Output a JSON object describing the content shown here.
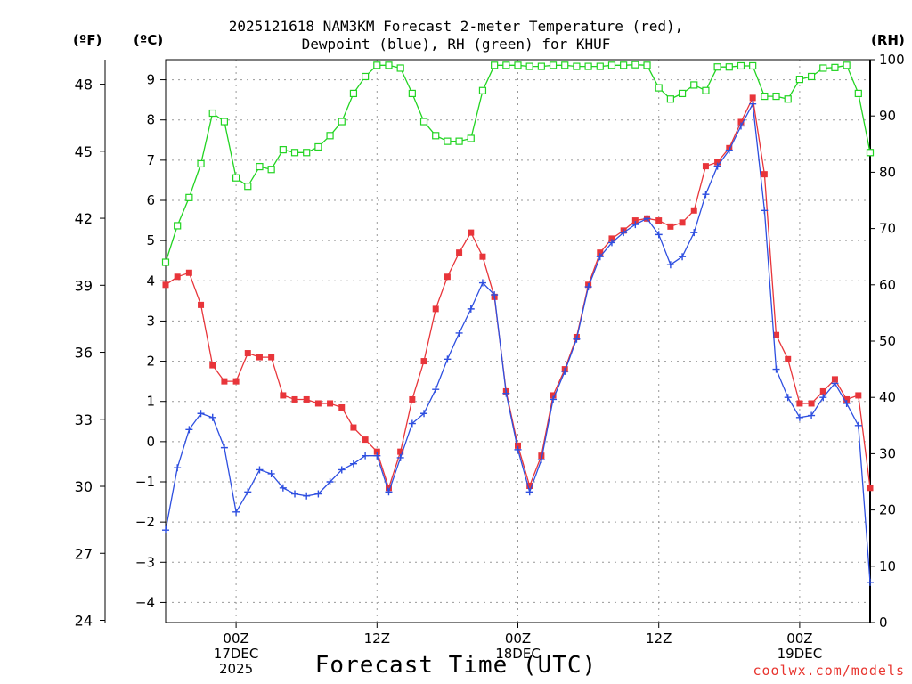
{
  "header": {
    "title_line1": "2025121618 NAM3KM Forecast 2-meter Temperature (red),",
    "title_line2": "Dewpoint (blue), RH (green) for KHUF"
  },
  "units": {
    "fahrenheit": "(ºF)",
    "celsius": "(ºC)",
    "rh": "(RH)"
  },
  "footer": {
    "xlabel": "Forecast Time (UTC)",
    "credit": "coolwx.com/models"
  },
  "chart_data": {
    "type": "line",
    "title": "2025121618 NAM3KM Forecast 2-meter Temperature (red), Dewpoint (blue), RH (green) for KHUF",
    "xlabel": "Forecast Time (UTC)",
    "x_unit": "forecast hour (from 2025-12-16 18Z)",
    "x": [
      0,
      1,
      2,
      3,
      4,
      5,
      6,
      7,
      8,
      9,
      10,
      11,
      12,
      13,
      14,
      15,
      16,
      17,
      18,
      19,
      20,
      21,
      22,
      23,
      24,
      25,
      26,
      27,
      28,
      29,
      30,
      31,
      32,
      33,
      34,
      35,
      36,
      37,
      38,
      39,
      40,
      41,
      42,
      43,
      44,
      45,
      46,
      47,
      48,
      49,
      50,
      51,
      52,
      53,
      54,
      55,
      56,
      57,
      58,
      59,
      60
    ],
    "xlim": [
      0,
      60
    ],
    "x_ticks": [
      {
        "x": 6,
        "lines": [
          "00Z",
          "17DEC",
          "2025"
        ]
      },
      {
        "x": 18,
        "lines": [
          "12Z"
        ]
      },
      {
        "x": 30,
        "lines": [
          "00Z",
          "18DEC"
        ]
      },
      {
        "x": 42,
        "lines": [
          "12Z"
        ]
      },
      {
        "x": 54,
        "lines": [
          "00Z",
          "19DEC"
        ]
      }
    ],
    "y_left_celsius": {
      "label": "(ºC)",
      "ylim": [
        -4.5,
        9.5
      ],
      "ticks": [
        -4,
        -3,
        -2,
        -1,
        0,
        1,
        2,
        3,
        4,
        5,
        6,
        7,
        8,
        9
      ]
    },
    "y_left_fahrenheit": {
      "label": "(ºF)",
      "ticks": [
        24,
        27,
        30,
        33,
        36,
        39,
        42,
        45,
        48
      ]
    },
    "y_right_rh": {
      "label": "(RH)",
      "ylim": [
        0,
        100
      ],
      "ticks": [
        0,
        10,
        20,
        30,
        40,
        50,
        60,
        70,
        80,
        90,
        100
      ]
    },
    "grid": true,
    "series": [
      {
        "name": "2-meter Temperature",
        "axis": "celsius",
        "color": "#e8353a",
        "marker": "filled-square",
        "values": [
          3.9,
          4.1,
          4.2,
          3.4,
          1.9,
          1.5,
          1.5,
          2.2,
          2.1,
          2.1,
          1.15,
          1.05,
          1.05,
          0.95,
          0.95,
          0.85,
          0.35,
          0.05,
          -0.25,
          -1.15,
          -0.25,
          1.05,
          2.0,
          3.3,
          4.1,
          4.7,
          5.2,
          4.6,
          3.6,
          1.25,
          -0.1,
          -1.1,
          -0.35,
          1.15,
          1.8,
          2.6,
          3.9,
          4.7,
          5.05,
          5.25,
          5.5,
          5.55,
          5.5,
          5.35,
          5.45,
          5.75,
          6.85,
          6.95,
          7.3,
          7.95,
          8.55,
          6.65,
          2.65,
          2.05,
          0.95,
          0.95,
          1.25,
          1.55,
          1.05,
          1.15,
          -1.15
        ]
      },
      {
        "name": "Dewpoint",
        "axis": "celsius",
        "color": "#2e4fe0",
        "marker": "plus",
        "values": [
          -2.2,
          -0.65,
          0.3,
          0.7,
          0.6,
          -0.15,
          -1.75,
          -1.25,
          -0.7,
          -0.8,
          -1.15,
          -1.3,
          -1.35,
          -1.3,
          -1.0,
          -0.7,
          -0.55,
          -0.35,
          -0.35,
          -1.25,
          -0.4,
          0.45,
          0.7,
          1.3,
          2.05,
          2.7,
          3.3,
          3.95,
          3.65,
          1.2,
          -0.2,
          -1.25,
          -0.45,
          1.05,
          1.75,
          2.55,
          3.85,
          4.6,
          4.95,
          5.2,
          5.4,
          5.55,
          5.15,
          4.4,
          4.6,
          5.2,
          6.15,
          6.85,
          7.25,
          7.85,
          8.4,
          5.75,
          1.8,
          1.1,
          0.6,
          0.65,
          1.1,
          1.45,
          0.95,
          0.4,
          -3.5
        ]
      },
      {
        "name": "RH",
        "axis": "rh",
        "color": "#22d422",
        "marker": "open-square",
        "values": [
          64,
          70.5,
          75.5,
          81.5,
          90.5,
          89,
          79,
          77.5,
          81,
          80.5,
          84,
          83.5,
          83.5,
          84.5,
          86.5,
          89,
          94,
          97,
          99,
          99,
          98.5,
          94,
          89,
          86.5,
          85.5,
          85.5,
          86,
          94.5,
          99,
          99,
          99,
          98.8,
          98.8,
          99,
          99,
          98.8,
          98.8,
          98.8,
          99,
          99,
          99.1,
          99,
          95,
          93,
          94,
          95.5,
          94.5,
          98.7,
          98.7,
          98.9,
          98.9,
          93.5,
          93.5,
          93,
          96.5,
          97,
          98.5,
          98.6,
          99,
          94,
          83.5
        ]
      }
    ]
  }
}
